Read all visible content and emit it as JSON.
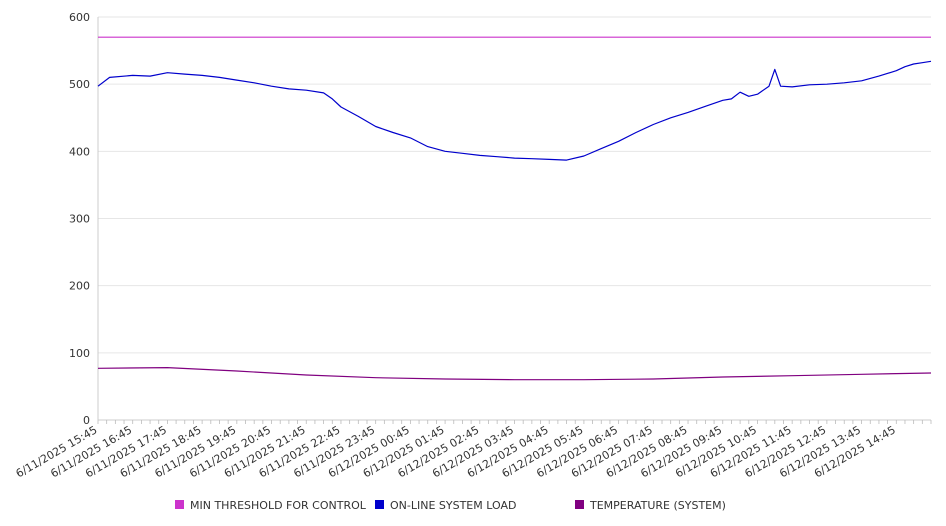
{
  "chart_data": {
    "type": "line",
    "title": "",
    "xlabel": "",
    "ylabel": "",
    "ylim": [
      0,
      600
    ],
    "yticks": [
      0,
      100,
      200,
      300,
      400,
      500,
      600
    ],
    "grid": "horizontal",
    "legend_position": "bottom",
    "x_tick_labels": [
      "6/11/2025 15:45",
      "6/11/2025 16:45",
      "6/11/2025 17:45",
      "6/11/2025 18:45",
      "6/11/2025 19:45",
      "6/11/2025 20:45",
      "6/11/2025 21:45",
      "6/11/2025 22:45",
      "6/11/2025 23:45",
      "6/12/2025 00:45",
      "6/12/2025 01:45",
      "6/12/2025 02:45",
      "6/12/2025 03:45",
      "6/12/2025 04:45",
      "6/12/2025 05:45",
      "6/12/2025 06:45",
      "6/12/2025 07:45",
      "6/12/2025 08:45",
      "6/12/2025 09:45",
      "6/12/2025 10:45",
      "6/12/2025 11:45",
      "6/12/2025 12:45",
      "6/12/2025 13:45",
      "6/12/2025 14:45"
    ],
    "x_end": "6/12/2025 15:45",
    "series": [
      {
        "name": "MIN THRESHOLD FOR CONTROL",
        "color": "#cc33cc",
        "points": [
          [
            "6/11/2025 15:45",
            570
          ],
          [
            "6/12/2025 15:45",
            570
          ]
        ]
      },
      {
        "name": "ON-LINE SYSTEM LOAD",
        "color": "#0000cc",
        "points": [
          [
            "6/11/2025 15:45",
            497
          ],
          [
            "6/11/2025 16:05",
            510
          ],
          [
            "6/11/2025 16:45",
            513
          ],
          [
            "6/11/2025 17:15",
            512
          ],
          [
            "6/11/2025 17:45",
            517
          ],
          [
            "6/11/2025 18:15",
            515
          ],
          [
            "6/11/2025 18:45",
            513
          ],
          [
            "6/11/2025 19:15",
            510
          ],
          [
            "6/11/2025 19:45",
            506
          ],
          [
            "6/11/2025 20:15",
            502
          ],
          [
            "6/11/2025 20:45",
            497
          ],
          [
            "6/11/2025 21:15",
            493
          ],
          [
            "6/11/2025 21:45",
            491
          ],
          [
            "6/11/2025 22:15",
            487
          ],
          [
            "6/11/2025 22:30",
            478
          ],
          [
            "6/11/2025 22:45",
            466
          ],
          [
            "6/11/2025 23:15",
            452
          ],
          [
            "6/11/2025 23:45",
            437
          ],
          [
            "6/12/2025 00:15",
            428
          ],
          [
            "6/12/2025 00:45",
            420
          ],
          [
            "6/12/2025 01:15",
            407
          ],
          [
            "6/12/2025 01:45",
            400
          ],
          [
            "6/12/2025 02:15",
            397
          ],
          [
            "6/12/2025 02:45",
            394
          ],
          [
            "6/12/2025 03:15",
            392
          ],
          [
            "6/12/2025 03:45",
            390
          ],
          [
            "6/12/2025 04:15",
            389
          ],
          [
            "6/12/2025 04:45",
            388
          ],
          [
            "6/12/2025 05:15",
            387
          ],
          [
            "6/12/2025 05:45",
            393
          ],
          [
            "6/12/2025 06:15",
            404
          ],
          [
            "6/12/2025 06:45",
            415
          ],
          [
            "6/12/2025 07:15",
            428
          ],
          [
            "6/12/2025 07:45",
            440
          ],
          [
            "6/12/2025 08:15",
            450
          ],
          [
            "6/12/2025 08:45",
            458
          ],
          [
            "6/12/2025 09:15",
            467
          ],
          [
            "6/12/2025 09:45",
            476
          ],
          [
            "6/12/2025 10:00",
            478
          ],
          [
            "6/12/2025 10:15",
            488
          ],
          [
            "6/12/2025 10:30",
            482
          ],
          [
            "6/12/2025 10:45",
            485
          ],
          [
            "6/12/2025 11:05",
            497
          ],
          [
            "6/12/2025 11:15",
            522
          ],
          [
            "6/12/2025 11:25",
            497
          ],
          [
            "6/12/2025 11:45",
            496
          ],
          [
            "6/12/2025 12:15",
            499
          ],
          [
            "6/12/2025 12:45",
            500
          ],
          [
            "6/12/2025 13:15",
            502
          ],
          [
            "6/12/2025 13:45",
            505
          ],
          [
            "6/12/2025 14:15",
            512
          ],
          [
            "6/12/2025 14:45",
            520
          ],
          [
            "6/12/2025 15:00",
            526
          ],
          [
            "6/12/2025 15:15",
            530
          ],
          [
            "6/12/2025 15:30",
            532
          ],
          [
            "6/12/2025 15:45",
            534
          ]
        ]
      },
      {
        "name": "TEMPERATURE (SYSTEM)",
        "color": "#800080",
        "points": [
          [
            "6/11/2025 15:45",
            77
          ],
          [
            "6/11/2025 17:45",
            78
          ],
          [
            "6/11/2025 19:45",
            73
          ],
          [
            "6/11/2025 21:45",
            67
          ],
          [
            "6/11/2025 23:45",
            63
          ],
          [
            "6/12/2025 01:45",
            61
          ],
          [
            "6/12/2025 03:45",
            60
          ],
          [
            "6/12/2025 05:45",
            60
          ],
          [
            "6/12/2025 07:45",
            61
          ],
          [
            "6/12/2025 09:45",
            64
          ],
          [
            "6/12/2025 11:45",
            66
          ],
          [
            "6/12/2025 13:45",
            68
          ],
          [
            "6/12/2025 15:45",
            70
          ]
        ]
      }
    ]
  }
}
